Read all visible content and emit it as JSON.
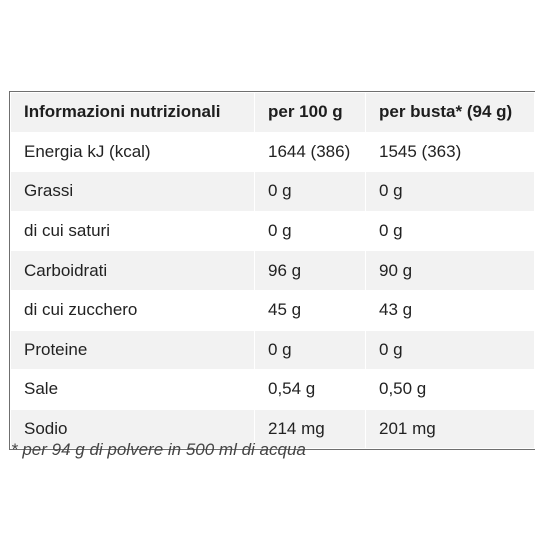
{
  "table": {
    "headers": [
      "Informazioni nutrizionali",
      "per 100 g",
      "per busta* (94 g)"
    ],
    "rows": [
      [
        "Energia kJ (kcal)",
        "1644 (386)",
        "1545 (363)"
      ],
      [
        "Grassi",
        "0 g",
        "0 g"
      ],
      [
        "di cui saturi",
        "0 g",
        "0 g"
      ],
      [
        "Carboidrati",
        "96 g",
        "90 g"
      ],
      [
        "di cui zucchero",
        "45 g",
        "43 g"
      ],
      [
        "Proteine",
        "0 g",
        "0 g"
      ],
      [
        "Sale",
        "0,54 g",
        "0,50 g"
      ],
      [
        "Sodio",
        "214 mg",
        "201 mg"
      ]
    ]
  },
  "footnote": "* per 94 g di polvere in 500 ml di acqua"
}
